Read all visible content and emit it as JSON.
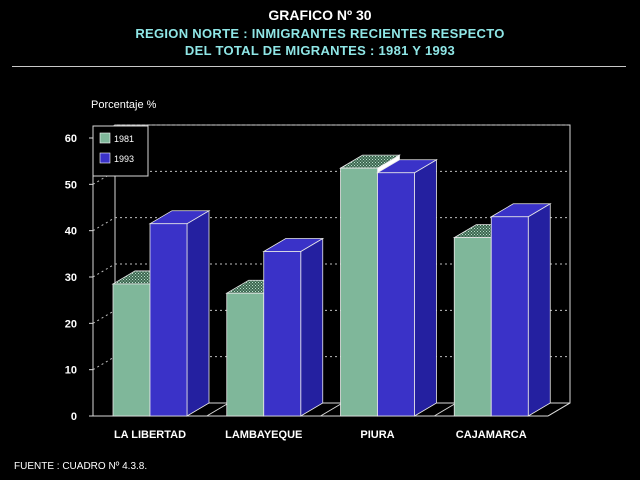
{
  "title": "GRAFICO Nº 30",
  "subtitle1": "REGION NORTE : INMIGRANTES RECIENTES RESPECTO",
  "subtitle2": "DEL TOTAL DE MIGRANTES : 1981 Y 1993",
  "source": "FUENTE : CUADRO Nº 4.3.8.",
  "colors": {
    "background": "#000000",
    "series_1981": "#7fb79a",
    "series_1993": "#3a32c8",
    "subtitle": "#8fe6e6"
  },
  "chart_data": {
    "type": "bar",
    "ylabel": "Porcentaje %",
    "ylim": [
      0,
      60
    ],
    "yticks": [
      0,
      10,
      20,
      30,
      40,
      50,
      60
    ],
    "grid": true,
    "legend_position": "top-left",
    "categories": [
      "LA LIBERTAD",
      "LAMBAYEQUE",
      "PIURA",
      "CAJAMARCA"
    ],
    "series": [
      {
        "name": "1981",
        "values": [
          28.5,
          26.5,
          53.5,
          38.5
        ]
      },
      {
        "name": "1993",
        "values": [
          41.5,
          35.5,
          52.5,
          43
        ]
      }
    ]
  }
}
